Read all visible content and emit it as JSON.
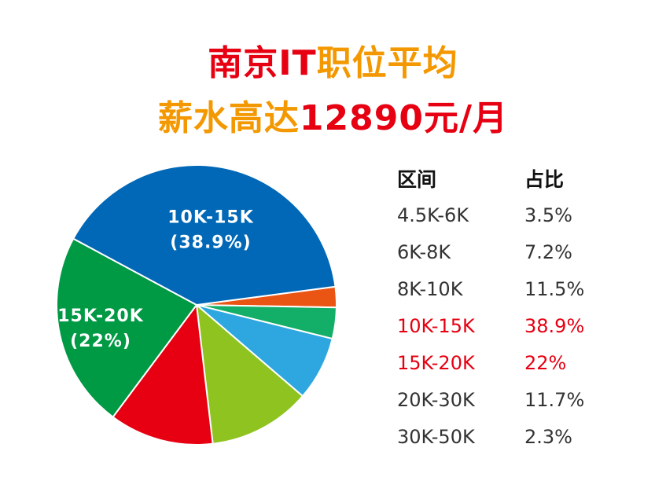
{
  "title": {
    "line1": [
      {
        "text": "南京IT",
        "color": "#e60012"
      },
      {
        "text": "职位平均",
        "color": "#f39800"
      }
    ],
    "line2": [
      {
        "text": "薪水高达",
        "color": "#f39800"
      },
      {
        "text": "12890元/月",
        "color": "#e60012"
      }
    ]
  },
  "legend": {
    "header_range": "区间",
    "header_share": "占比",
    "highlight_color": "#e60012"
  },
  "chart_data": {
    "type": "pie",
    "categories": [
      "4.5K-6K",
      "6K-8K",
      "8K-10K",
      "10K-15K",
      "15K-20K",
      "20K-30K",
      "30K-50K"
    ],
    "labels_text": [
      "4.5K-6K",
      "6K-8K",
      "8K-10K",
      "10K-15K",
      "15K-20K",
      "20K-30K",
      "30K-50K"
    ],
    "values": [
      3.5,
      7.2,
      11.5,
      38.9,
      22,
      11.7,
      2.3
    ],
    "value_labels": [
      "3.5%",
      "7.2%",
      "11.5%",
      "38.9%",
      "22%",
      "11.7%",
      "2.3%"
    ],
    "highlight": [
      false,
      false,
      false,
      true,
      true,
      false,
      false
    ],
    "slice_labels": [
      {
        "index": 3,
        "line1": "10K-15K",
        "line2": "(38.9%)"
      },
      {
        "index": 4,
        "line1": "15K-20K",
        "line2": "(22%)"
      }
    ],
    "order_on_pie": [
      6,
      0,
      1,
      2,
      5,
      4,
      3
    ],
    "colors": {
      "30K-50K": "#ea5514",
      "4.5K-6K": "#13ae67",
      "6K-8K": "#2ea7e0",
      "8K-10K": "#8fc31f",
      "20K-30K": "#e60012",
      "15K-20K": "#009944",
      "10K-15K": "#0068b7"
    },
    "legend_placement": "right"
  }
}
